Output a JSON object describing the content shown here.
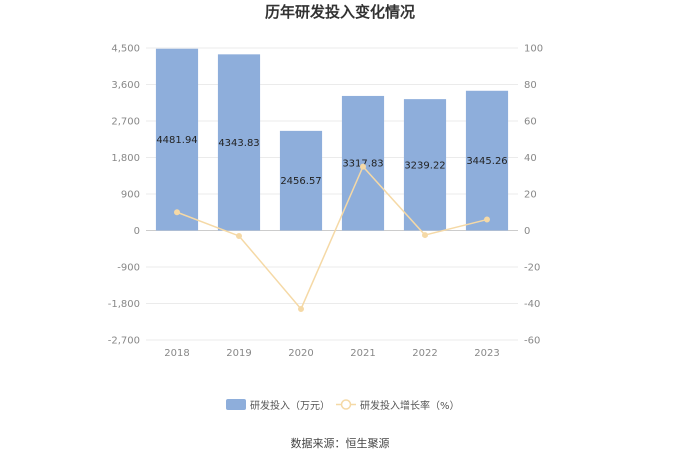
{
  "chart_data": {
    "type": "bar",
    "title": "历年研发投入变化情况",
    "categories": [
      "2018",
      "2019",
      "2020",
      "2021",
      "2022",
      "2023"
    ],
    "series": [
      {
        "name": "研发投入（万元）",
        "type": "bar",
        "axis": "left",
        "values": [
          4481.94,
          4343.83,
          2456.57,
          3317.83,
          3239.22,
          3445.26
        ],
        "labels": [
          "4481.94",
          "4343.83",
          "2456.57",
          "3317.83",
          "3239.22",
          "3445.26"
        ],
        "color": "#8eaedb"
      },
      {
        "name": "研发投入增长率（%）",
        "type": "line",
        "axis": "right",
        "values": [
          10,
          -3,
          -43,
          35,
          -2.5,
          6
        ],
        "color": "#f5d9a6"
      }
    ],
    "y_left": {
      "ylim": [
        -2700,
        4500
      ],
      "ticks": [
        "4,500",
        "3,600",
        "2,700",
        "1,800",
        "900",
        "0",
        "-900",
        "-1,800",
        "-2,700"
      ],
      "tick_values": [
        4500,
        3600,
        2700,
        1800,
        900,
        0,
        -900,
        -1800,
        -2700
      ]
    },
    "y_right": {
      "ylim": [
        -60,
        100
      ],
      "ticks": [
        "100",
        "80",
        "60",
        "40",
        "20",
        "0",
        "-20",
        "-40",
        "-60"
      ],
      "tick_values": [
        100,
        80,
        60,
        40,
        20,
        0,
        -20,
        -40,
        -60
      ]
    },
    "grid": true,
    "legend": "bottom"
  },
  "source": "数据来源：恒生聚源"
}
